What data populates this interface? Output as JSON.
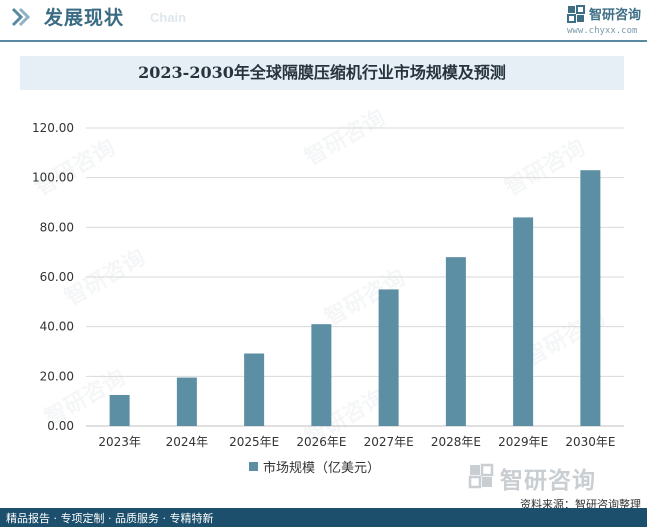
{
  "header": {
    "section_title": "发展现状",
    "section_subtitle": "Chain",
    "logo_text": "智研咨询",
    "logo_url": "www.chyxx.com"
  },
  "chart_data": {
    "type": "bar",
    "title": "2023-2030年全球隔膜压缩机行业市场规模及预测",
    "categories": [
      "2023年",
      "2024年",
      "2025年E",
      "2026年E",
      "2027年E",
      "2028年E",
      "2029年E",
      "2030年E"
    ],
    "series": [
      {
        "name": "市场规模（亿美元）",
        "values": [
          12.5,
          19.5,
          29.2,
          41.0,
          55.0,
          68.0,
          84.0,
          103.0
        ]
      }
    ],
    "yticks": [
      "0.00",
      "20.00",
      "40.00",
      "60.00",
      "80.00",
      "100.00",
      "120.00"
    ],
    "ylim": [
      0,
      120
    ],
    "grid": true,
    "legend_position": "bottom",
    "bar_color": "#5c8fa4"
  },
  "watermark": "智研咨询",
  "bottom_logo_text": "智研咨询",
  "source": "资料来源：智研咨询整理",
  "footer": "精品报告 · 专项定制 · 品质服务 · 专精特新"
}
